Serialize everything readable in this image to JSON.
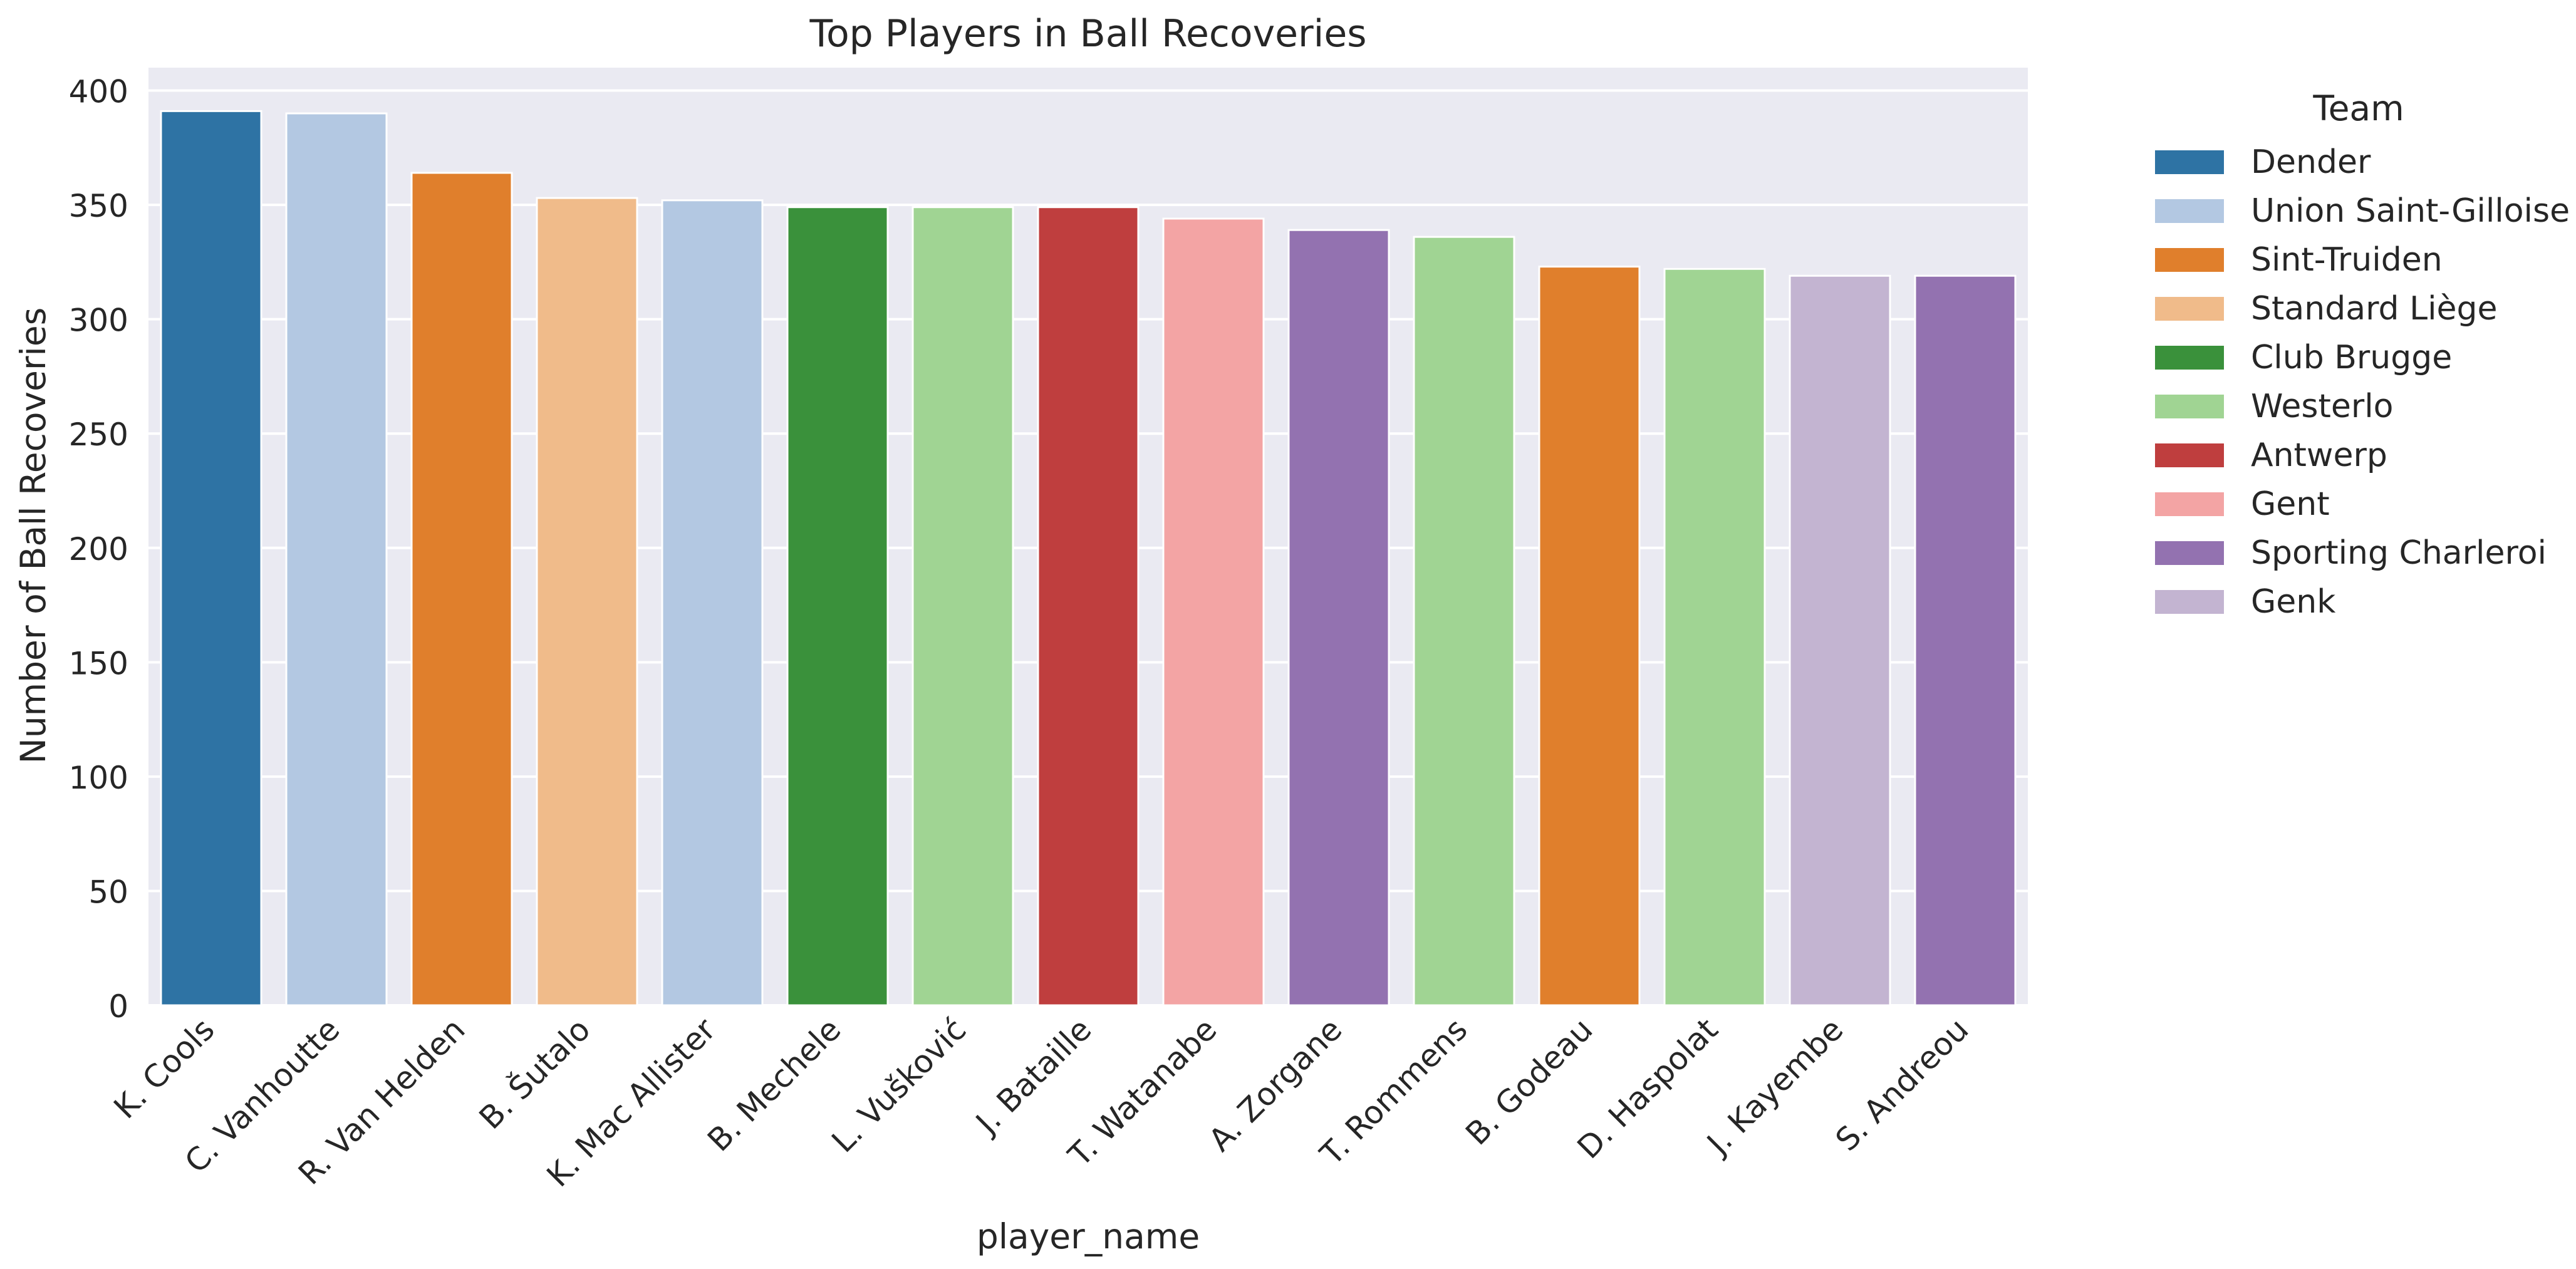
{
  "chart_data": {
    "type": "bar",
    "title": "Top Players in Ball Recoveries",
    "xlabel": "player_name",
    "ylabel": "Number of Ball Recoveries",
    "ylim": [
      0,
      410
    ],
    "yticks": [
      0,
      50,
      100,
      150,
      200,
      250,
      300,
      350,
      400
    ],
    "grid": true,
    "legend_position": "outside-right",
    "legend_title": "Team",
    "categories": [
      "K. Cools",
      "C. Vanhoutte",
      "R. Van Helden",
      "B. Šutalo",
      "K. Mac Allister",
      "B. Mechele",
      "L. Vušković",
      "J. Bataille",
      "T. Watanabe",
      "A. Zorgane",
      "T. Rommens",
      "B. Godeau",
      "D. Haspolat",
      "J. Kayembe",
      "S. Andreou"
    ],
    "values": [
      391,
      390,
      364,
      353,
      352,
      349,
      349,
      349,
      344,
      339,
      336,
      323,
      322,
      319,
      319
    ],
    "teams": [
      "Dender",
      "Union Saint-Gilloise",
      "Sint-Truiden",
      "Standard Liège",
      "Union Saint-Gilloise",
      "Club Brugge",
      "Westerlo",
      "Antwerp",
      "Gent",
      "Sporting Charleroi",
      "Westerlo",
      "Sint-Truiden",
      "Westerlo",
      "Genk",
      "Sporting Charleroi"
    ],
    "legend": [
      {
        "name": "Dender",
        "color": "#2e73a4"
      },
      {
        "name": "Union Saint-Gilloise",
        "color": "#b3c8e2"
      },
      {
        "name": "Sint-Truiden",
        "color": "#e07f2c"
      },
      {
        "name": "Standard Liège",
        "color": "#f0bb8a"
      },
      {
        "name": "Club Brugge",
        "color": "#3a913b"
      },
      {
        "name": "Westerlo",
        "color": "#a0d493"
      },
      {
        "name": "Antwerp",
        "color": "#bf3e3e"
      },
      {
        "name": "Gent",
        "color": "#f3a4a4"
      },
      {
        "name": "Sporting Charleroi",
        "color": "#9372b0"
      },
      {
        "name": "Genk",
        "color": "#c3b4d1"
      }
    ],
    "plot_background": "#eaeaf2"
  }
}
